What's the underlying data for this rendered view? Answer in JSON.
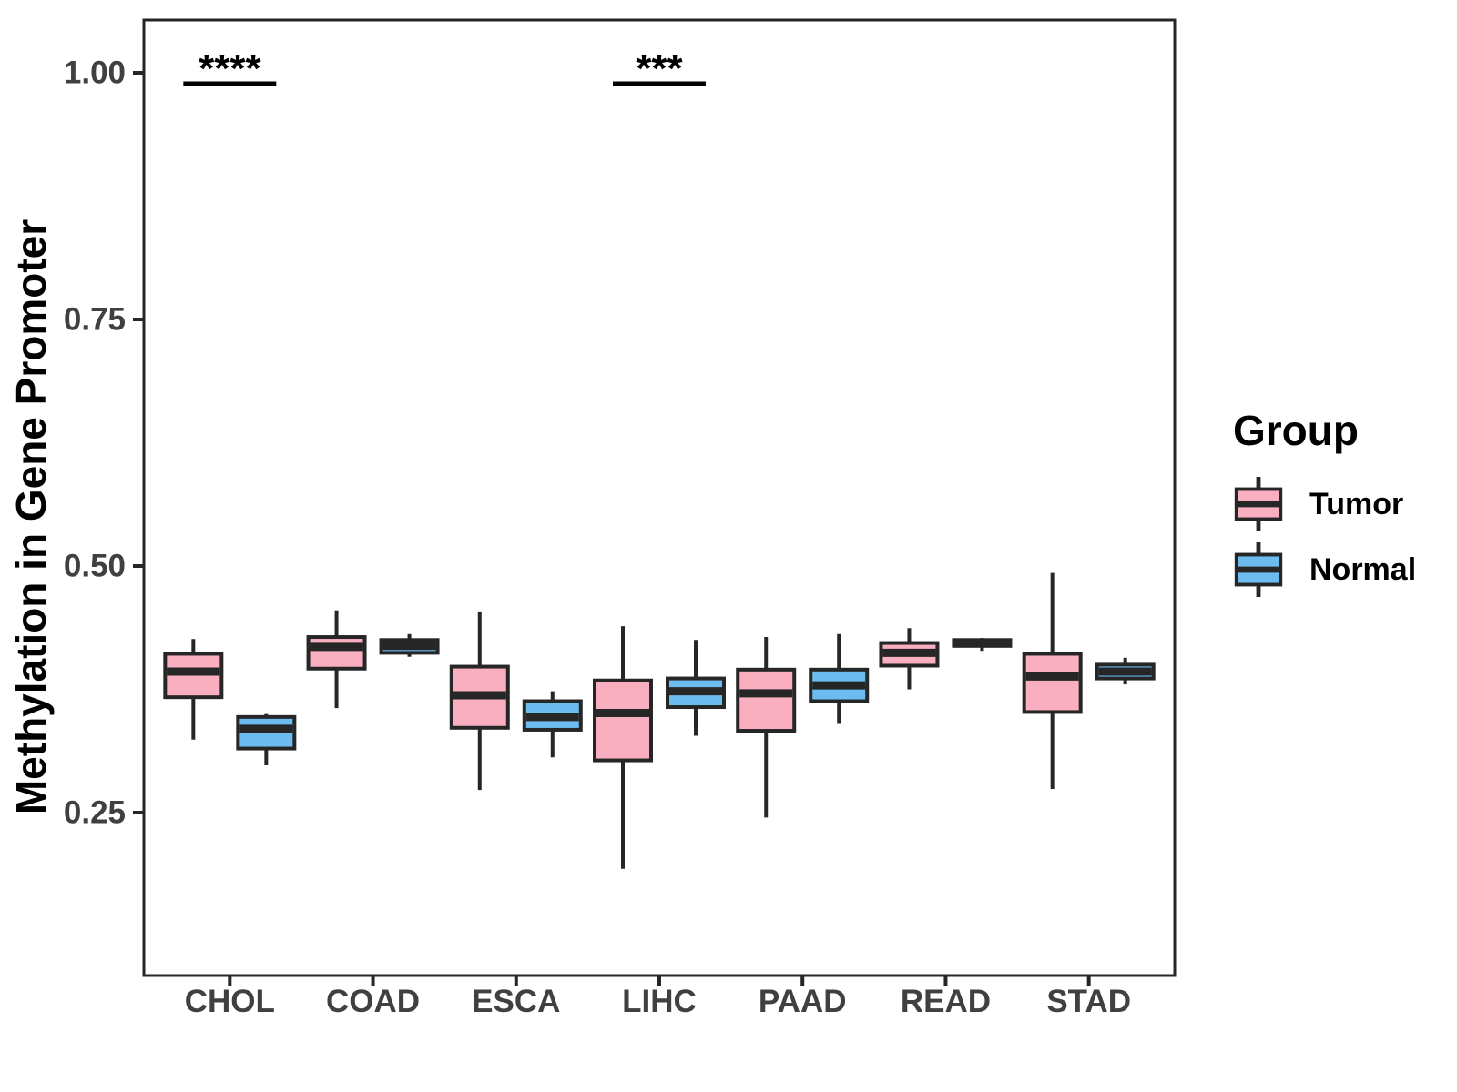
{
  "chart_data": {
    "type": "boxplot",
    "orientation": "vertical",
    "title": "",
    "xlabel": "",
    "ylabel": "Methylation in Gene Promoter",
    "grid": false,
    "ylim": [
      0.085,
      1.056
    ],
    "y_ticks": [
      {
        "label": "1.00",
        "value": 1.0
      },
      {
        "label": "0.75",
        "value": 0.75
      },
      {
        "label": "0.50",
        "value": 0.5
      },
      {
        "label": "0.25",
        "value": 0.25
      }
    ],
    "categories": [
      "CHOL",
      "COAD",
      "ESCA",
      "LIHC",
      "PAAD",
      "READ",
      "STAD"
    ],
    "series": [
      {
        "name": "Tumor",
        "color": "#FAAFC0",
        "stats": [
          {
            "min": 0.324,
            "q1": 0.367,
            "median": 0.393,
            "q3": 0.411,
            "max": 0.426
          },
          {
            "min": 0.356,
            "q1": 0.396,
            "median": 0.418,
            "q3": 0.428,
            "max": 0.455
          },
          {
            "min": 0.273,
            "q1": 0.336,
            "median": 0.369,
            "q3": 0.398,
            "max": 0.454
          },
          {
            "min": 0.193,
            "q1": 0.303,
            "median": 0.351,
            "q3": 0.384,
            "max": 0.439
          },
          {
            "min": 0.245,
            "q1": 0.333,
            "median": 0.371,
            "q3": 0.395,
            "max": 0.428
          },
          {
            "min": 0.375,
            "q1": 0.399,
            "median": 0.412,
            "q3": 0.422,
            "max": 0.437
          },
          {
            "min": 0.274,
            "q1": 0.352,
            "median": 0.388,
            "q3": 0.411,
            "max": 0.493
          }
        ]
      },
      {
        "name": "Normal",
        "color": "#6CBCF0",
        "stats": [
          {
            "min": 0.298,
            "q1": 0.315,
            "median": 0.335,
            "q3": 0.347,
            "max": 0.35
          },
          {
            "min": 0.408,
            "q1": 0.412,
            "median": 0.419,
            "q3": 0.425,
            "max": 0.431
          },
          {
            "min": 0.306,
            "q1": 0.334,
            "median": 0.347,
            "q3": 0.363,
            "max": 0.373
          },
          {
            "min": 0.328,
            "q1": 0.357,
            "median": 0.373,
            "q3": 0.386,
            "max": 0.425
          },
          {
            "min": 0.34,
            "q1": 0.363,
            "median": 0.379,
            "q3": 0.395,
            "max": 0.431
          },
          {
            "min": 0.414,
            "q1": 0.419,
            "median": 0.422,
            "q3": 0.425,
            "max": 0.427
          },
          {
            "min": 0.38,
            "q1": 0.386,
            "median": 0.393,
            "q3": 0.4,
            "max": 0.407
          }
        ]
      }
    ],
    "annotations": [
      {
        "category": "CHOL",
        "label": "****"
      },
      {
        "category": "LIHC",
        "label": "***"
      }
    ],
    "legend": {
      "title": "Group",
      "position": "right",
      "entries": [
        {
          "label": "Tumor",
          "color": "#FAAFC0"
        },
        {
          "label": "Normal",
          "color": "#6CBCF0"
        }
      ]
    }
  },
  "colors": {
    "box_stroke": "#262626",
    "axis_text": "#404040",
    "panel_border": "#262626",
    "annotation_text": "#000000",
    "background": "#ffffff"
  }
}
